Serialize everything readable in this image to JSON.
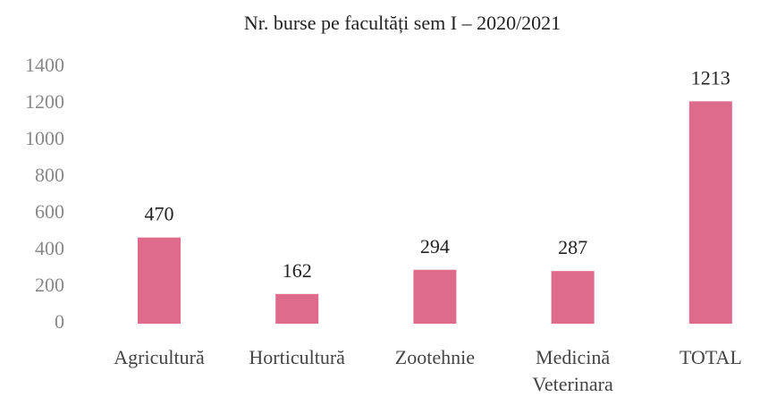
{
  "chart_data": {
    "type": "bar",
    "title": "Nr. burse pe facultăți sem I – 2020/2021",
    "categories": [
      "Agricultură",
      "Horticultură",
      "Zootehnie",
      "Medicină Veterinara",
      "TOTAL"
    ],
    "values": [
      470,
      162,
      294,
      287,
      1213
    ],
    "color": "#de6a8c",
    "ylim": [
      0,
      1400
    ],
    "yticks": [
      0,
      200,
      400,
      600,
      800,
      1000,
      1200,
      1400
    ],
    "grid": false
  }
}
